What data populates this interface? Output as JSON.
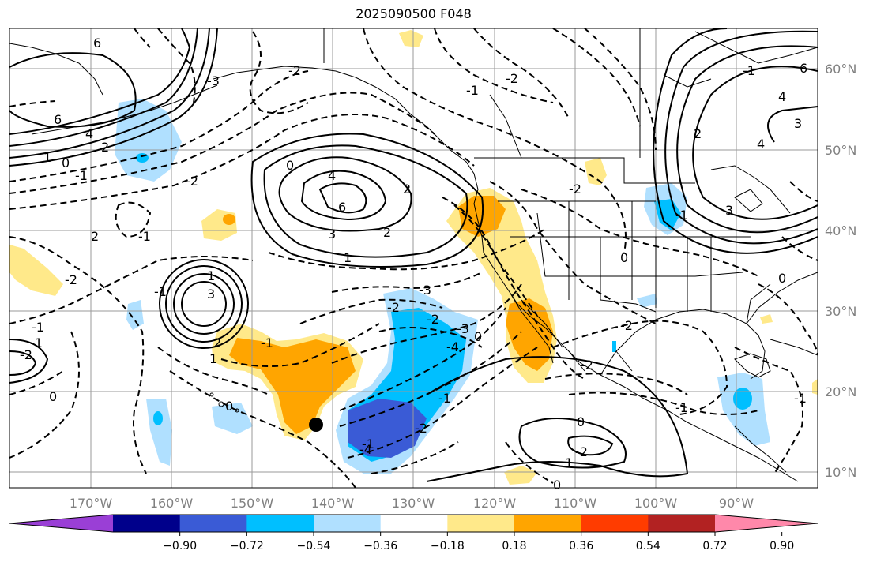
{
  "title": "2025090500 F048",
  "latitudes": [
    "60°N",
    "50°N",
    "40°N",
    "30°N",
    "20°N",
    "10°N"
  ],
  "longitudes": [
    "170°W",
    "160°W",
    "150°W",
    "140°W",
    "130°W",
    "120°W",
    "110°W",
    "100°W",
    "90°W"
  ],
  "colorbar": {
    "colors": [
      "#9a3fd6",
      "#00008b",
      "#3a5bd6",
      "#00bfff",
      "#b0e0ff",
      "#ffffff",
      "#ffe98a",
      "#ffa500",
      "#ff3c00",
      "#b22222",
      "#ff88aa"
    ],
    "ticks": [
      "−0.90",
      "−0.72",
      "−0.54",
      "−0.36",
      "−0.18",
      "0.18",
      "0.36",
      "0.54",
      "0.72",
      "0.90"
    ]
  },
  "contour_labels": [
    "6",
    "4",
    "2",
    "1",
    "0",
    "-1",
    "-2",
    "-3",
    "4",
    "2",
    "3",
    "6",
    "1",
    "3",
    "2",
    "1",
    "0",
    "2",
    "-1",
    "-2",
    "-1",
    "-2",
    "-1",
    "0",
    "1",
    "0",
    "2",
    "-1",
    "-2",
    "-2",
    "-3",
    "-4",
    "-3",
    "-4",
    "-2",
    "0",
    "-1",
    "-1",
    "4",
    "3",
    "6",
    "4",
    "2",
    "3",
    "-2",
    "-1",
    "-2",
    "0",
    "-1",
    "-2",
    "-1",
    "-2",
    "0",
    "0",
    "-1",
    "0",
    "1",
    "-2",
    "-1",
    "-2",
    "-1"
  ]
}
